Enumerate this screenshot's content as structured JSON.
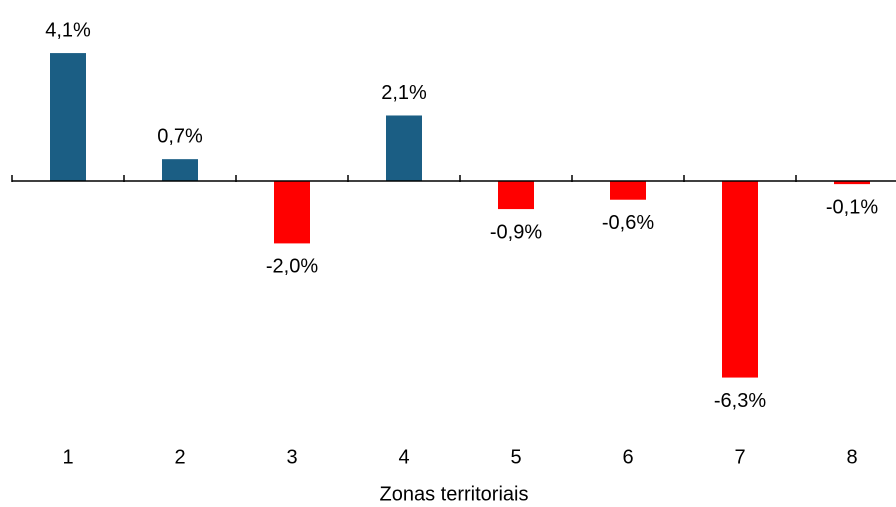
{
  "chart_data": {
    "type": "bar",
    "x_label": "Zonas territoriais",
    "categories": [
      "1",
      "2",
      "3",
      "4",
      "5",
      "6",
      "7",
      "8"
    ],
    "values": [
      4.1,
      0.7,
      -2.0,
      2.1,
      -0.9,
      -0.6,
      -6.3,
      -0.1
    ],
    "value_labels": [
      "4,1%",
      "0,7%",
      "-2,0%",
      "2,1%",
      "-0,9%",
      "-0,6%",
      "-6,3%",
      "-0,1%"
    ],
    "color_positive": "#1b5e84",
    "color_negative": "#ff0000",
    "ylim": [
      -6.5,
      5.5
    ]
  }
}
